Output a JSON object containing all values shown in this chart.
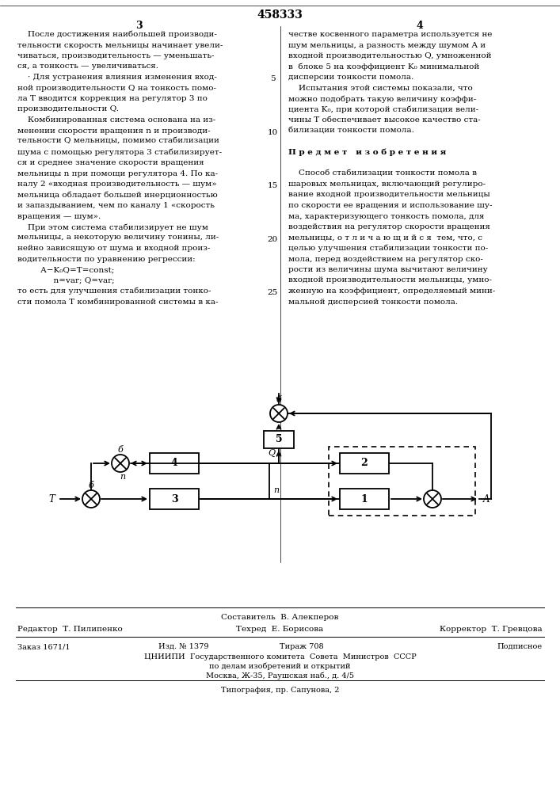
{
  "patent_number": "458333",
  "page_left": "3",
  "page_right": "4",
  "background_color": "#ffffff",
  "left_col_lines": [
    "    После достижения наибольшей производи-",
    "тельности скорость мельницы начинает увели-",
    "чиваться, производительность — уменьшать-",
    "ся, а тонкость — увеличиваться.",
    "    · Для устранения влияния изменения вход-",
    "ной производительности Q на тонкость помо-",
    "ла T вводится коррекция на регулятор 3 по",
    "производительности Q.",
    "    Комбинированная система основана на из-",
    "менении скорости вращения n и производи-",
    "тельности Q мельницы, помимо стабилизации",
    "шума с помощью регулятора 3 стабилизирует-",
    "ся и среднее значение скорости вращения",
    "мельницы n при помощи регулятора 4. По ка-",
    "налу 2 «входная производительность — шум»",
    "мельница обладает большей инерционностью",
    "и запаздыванием, чем по каналу 1 «скорость",
    "вращения — шум».",
    "    При этом система стабилизирует не шум",
    "мельницы, а некоторую величину тонины, ли-",
    "нейно зависящую от шума и входной произ-",
    "водительности по уравнению регрессии:",
    "         A−K₀Q=T=const;",
    "              n=var; Q=var;",
    "то есть для улучшения стабилизации тонко-",
    "сти помола T комбинированной системы в ка-"
  ],
  "right_col_lines": [
    "честве косвенного параметра используется не",
    "шум мельницы, а разность между шумом A и",
    "входной производительностью Q, умноженной",
    "в  блоке 5 на коэффициент K₀ минимальной",
    "дисперсии тонкости помола.",
    "    Испытания этой системы показали, что",
    "можно подобрать такую величину коэффи-",
    "циента K₀, при которой стабилизация вели-",
    "чины T обеспечивает высокое качество ста-",
    "билизации тонкости помола.",
    "",
    "П р е д м е т   и з о б р е т е н и я",
    "",
    "    Способ стабилизации тонкости помола в",
    "шаровых мельницах, включающий регулиро-",
    "вание входной производительности мельницы",
    "по скорости ее вращения и использование шу-",
    "ма, характеризующего тонкость помола, для",
    "воздействия на регулятор скорости вращения",
    "мельницы, о т л и ч а ю щ и й с я  тем, что, с",
    "целью улучшения стабилизации тонкости по-",
    "мола, перед воздействием на регулятор ско-",
    "рости из величины шума вычитают величину",
    "входной производительности мельницы, умно-",
    "женную на коэффициент, определяемый мини-",
    "мальной дисперсией тонкости помола."
  ],
  "line_numbers": [
    [
      4,
      5
    ],
    [
      9,
      10
    ],
    [
      14,
      15
    ],
    [
      19,
      20
    ],
    [
      24,
      25
    ]
  ],
  "footer_composer": "Составитель  В. Алекперов",
  "footer_editor": "Редактор  Т. Пилипенко",
  "footer_tech": "Техред  Е. Борисова",
  "footer_corrector": "Корректор  Т. Гревцова",
  "footer_order": "Заказ 1671/1",
  "footer_pub": "Изд. № 1379",
  "footer_circ": "Тираж 708",
  "footer_sign": "Подписное",
  "footer_org1": "ЦНИИПИ  Государственного комитета  Совета  Министров  СССР",
  "footer_org2": "по делам изобретений и открытий",
  "footer_org3": "Москва, Ж-35, Раушская наб., д. 4/5",
  "footer_print": "Типография, пр. Сапунова, 2"
}
